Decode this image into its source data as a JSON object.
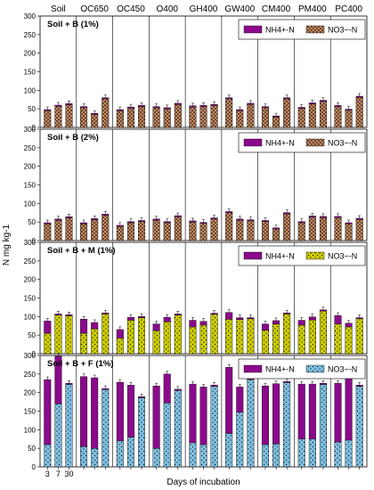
{
  "chart_data": {
    "type": "bar",
    "stacked": true,
    "ylabel": "N mg kg-1",
    "xlabel": "Days of incubation",
    "ylim": [
      0,
      300
    ],
    "yticks": [
      0,
      50,
      100,
      150,
      200,
      250,
      300
    ],
    "treatments": [
      "Soil",
      "OC650",
      "OC450",
      "O400",
      "GH400",
      "GW400",
      "CM400",
      "PM400",
      "PC400"
    ],
    "days": [
      "3",
      "7",
      "30"
    ],
    "day_label_columns": [
      0
    ],
    "grid": false,
    "colors": {
      "nh4": "#8b0a8b",
      "no3_b": "#c98c62",
      "no3_m": "#cccc00",
      "no3_f": "#7ebfe0"
    },
    "panels": [
      {
        "label": "Soil + B (1%)",
        "legend": {
          "nh4": "NH4+-N",
          "no3": "NO3−-N",
          "placement": "top-right"
        },
        "no3_color": "#c98c62",
        "pattern": "cross",
        "series": [
          {
            "key": "nh4",
            "name": "NH4+-N",
            "values": [
              [
                3,
                3,
                3
              ],
              [
                3,
                3,
                3
              ],
              [
                3,
                3,
                3
              ],
              [
                3,
                3,
                3
              ],
              [
                3,
                3,
                3
              ],
              [
                3,
                3,
                3
              ],
              [
                3,
                3,
                3
              ],
              [
                3,
                3,
                3
              ],
              [
                3,
                3,
                3
              ]
            ]
          },
          {
            "key": "no3",
            "name": "NO3−-N",
            "values": [
              [
                45,
                57,
                61
              ],
              [
                53,
                35,
                77
              ],
              [
                45,
                52,
                56
              ],
              [
                53,
                50,
                62
              ],
              [
                55,
                56,
                59
              ],
              [
                77,
                45,
                62
              ],
              [
                53,
                28,
                77
              ],
              [
                51,
                63,
                70
              ],
              [
                56,
                46,
                81
              ]
            ]
          }
        ]
      },
      {
        "label": "Soil + B (2%)",
        "legend": {
          "nh4": "NH4+-N",
          "no3": "NO3−-N",
          "placement": "top-right"
        },
        "no3_color": "#c98c62",
        "pattern": "cross",
        "series": [
          {
            "key": "nh4",
            "name": "NH4+-N",
            "values": [
              [
                3,
                3,
                3
              ],
              [
                3,
                3,
                3
              ],
              [
                3,
                3,
                3
              ],
              [
                3,
                3,
                3
              ],
              [
                3,
                3,
                3
              ],
              [
                3,
                3,
                3
              ],
              [
                3,
                3,
                3
              ],
              [
                3,
                3,
                3
              ],
              [
                3,
                3,
                3
              ]
            ]
          },
          {
            "key": "no3",
            "name": "NO3−-N",
            "values": [
              [
                45,
                55,
                61
              ],
              [
                45,
                56,
                68
              ],
              [
                38,
                48,
                51
              ],
              [
                55,
                48,
                64
              ],
              [
                50,
                46,
                58
              ],
              [
                75,
                55,
                53
              ],
              [
                51,
                31,
                72
              ],
              [
                48,
                63,
                62
              ],
              [
                62,
                45,
                57
              ]
            ]
          }
        ]
      },
      {
        "label": "Soil + B + M (1%)",
        "legend": {
          "nh4": "NH4+-N",
          "no3": "NO3−-N",
          "placement": "top-right"
        },
        "no3_color": "#cccc00",
        "pattern": "dots",
        "series": [
          {
            "key": "nh4",
            "name": "NH4+-N",
            "values": [
              [
                33,
                3,
                3
              ],
              [
                38,
                17,
                3
              ],
              [
                23,
                8,
                3
              ],
              [
                18,
                12,
                3
              ],
              [
                18,
                10,
                3
              ],
              [
                18,
                5,
                3
              ],
              [
                17,
                9,
                3
              ],
              [
                13,
                8,
                3
              ],
              [
                23,
                10,
                3
              ]
            ]
          },
          {
            "key": "no3",
            "name": "NO3−-N",
            "values": [
              [
                55,
                104,
                102
              ],
              [
                55,
                67,
                107
              ],
              [
                42,
                90,
                97
              ],
              [
                62,
                86,
                104
              ],
              [
                72,
                77,
                106
              ],
              [
                93,
                92,
                94
              ],
              [
                63,
                80,
                107
              ],
              [
                77,
                91,
                115
              ],
              [
                80,
                72,
                94
              ]
            ]
          }
        ]
      },
      {
        "label": "Soil + B + F (1%)",
        "legend": {
          "nh4": "NH4+-N",
          "no3": "NO3−-N",
          "placement": "top-right"
        },
        "no3_color": "#7ebfe0",
        "pattern": "dots",
        "series": [
          {
            "key": "nh4",
            "name": "NH4+-N",
            "values": [
              [
                175,
                128,
                3
              ],
              [
                188,
                190,
                3
              ],
              [
                158,
                140,
                3
              ],
              [
                168,
                78,
                3
              ],
              [
                158,
                155,
                3
              ],
              [
                178,
                68,
                3
              ],
              [
                158,
                162,
                3
              ],
              [
                148,
                148,
                3
              ],
              [
                158,
                175,
                3
              ]
            ]
          },
          {
            "key": "no3",
            "name": "NO3−-N",
            "values": [
              [
                60,
                170,
                222
              ],
              [
                55,
                50,
                208
              ],
              [
                70,
                80,
                186
              ],
              [
                50,
                172,
                206
              ],
              [
                65,
                60,
                217
              ],
              [
                90,
                147,
                235
              ],
              [
                60,
                62,
                227
              ],
              [
                75,
                75,
                222
              ],
              [
                67,
                72,
                217
              ]
            ]
          }
        ]
      }
    ]
  }
}
